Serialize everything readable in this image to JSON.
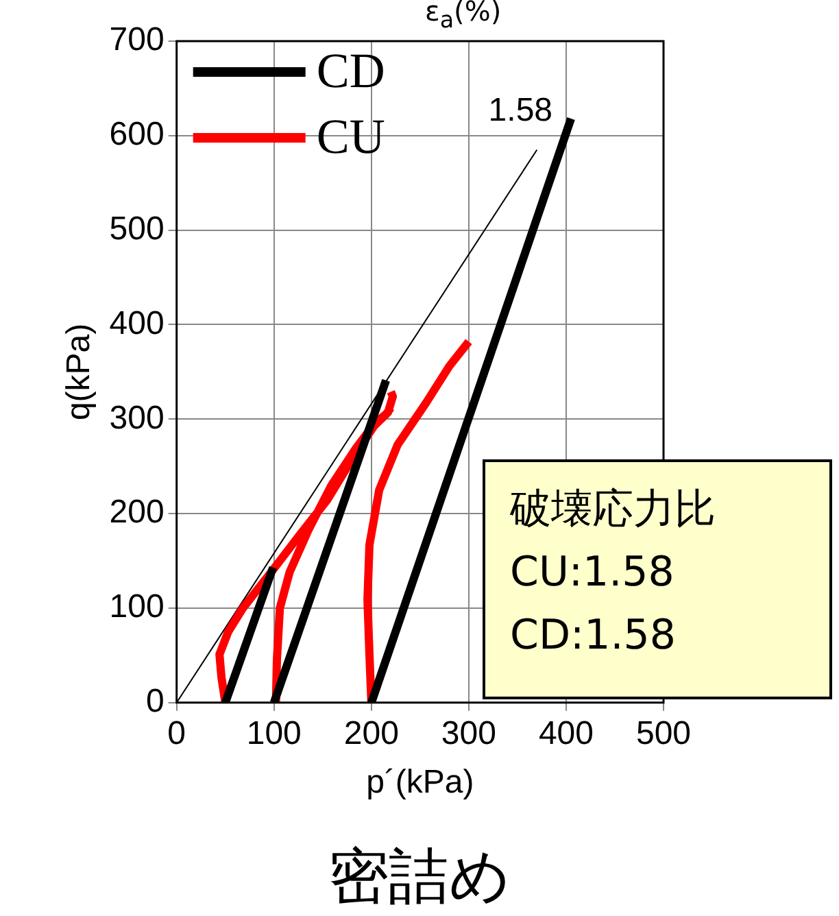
{
  "chart_data": {
    "type": "line",
    "xlabel": "p´(kPa)",
    "ylabel": "q(kPa)",
    "xlim": [
      0,
      500
    ],
    "ylim": [
      0,
      700
    ],
    "xticks": [
      0,
      100,
      200,
      300,
      400,
      500
    ],
    "yticks": [
      0,
      100,
      200,
      300,
      400,
      500,
      600,
      700
    ],
    "grid": true,
    "legend": "top left",
    "marker": "none",
    "line_style": "solid",
    "series": [
      {
        "name": "CD",
        "color": "#000000",
        "x": [
          50,
          99,
          null,
          100,
          215,
          null,
          200,
          405
        ],
        "values": [
          0,
          143,
          null,
          0,
          341,
          null,
          0,
          618
        ]
      },
      {
        "name": "CU",
        "color": "#ff0000",
        "x": [
          50,
          46,
          44,
          53,
          68,
          97,
          126,
          155,
          184,
          203,
          215,
          220,
          null,
          102,
          103,
          106,
          116,
          135,
          159,
          184,
          203,
          217,
          222,
          220,
          null,
          200,
          198,
          196,
          198,
          208,
          227,
          256,
          280,
          300
        ],
        "values": [
          0,
          27,
          51,
          75,
          100,
          138,
          177,
          215,
          264,
          293,
          305,
          312,
          null,
          0,
          46,
          100,
          138,
          182,
          230,
          269,
          295,
          307,
          324,
          329,
          null,
          0,
          51,
          109,
          167,
          225,
          273,
          317,
          356,
          382
        ]
      },
      {
        "type": "line",
        "color": "#000000",
        "x": [
          0,
          370
        ],
        "values": [
          0,
          585
        ]
      }
    ],
    "annotations": [
      "ε$_{a}$(%)",
      {
        "text": "1.58",
        "x": 370,
        "y": 585
      },
      "破壊応力比",
      "CU:1.58",
      "CD:1.58",
      "密詰め"
    ]
  }
}
